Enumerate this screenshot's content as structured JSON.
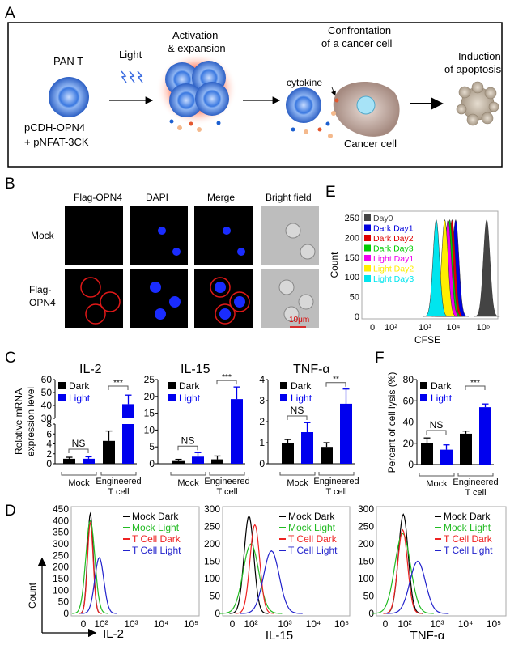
{
  "panel_labels": {
    "a": "A",
    "b": "B",
    "c": "C",
    "d": "D",
    "e": "E",
    "f": "F"
  },
  "panel_a": {
    "pan_t": "PAN T",
    "light": "Light",
    "activation_1": "Activation",
    "activation_2": "& expansion",
    "confront_1": "Confrontation",
    "confront_2": "of a cancer cell",
    "cytokine": "cytokine",
    "cancer_cell": "Cancer cell",
    "induction_1": "Induction",
    "induction_2": "of apoptosis",
    "construct_1": "pCDH-OPN4",
    "construct_2": "+ pNFAT-3CK"
  },
  "panel_b": {
    "columns": [
      "Flag-OPN4",
      "DAPI",
      "Merge",
      "Bright field"
    ],
    "rows": [
      "Mock",
      "Flag-",
      "OPN4"
    ],
    "scale_bar": "10μm"
  },
  "chart_data": [
    {
      "id": "C-IL-2",
      "type": "bar",
      "title": "IL-2",
      "ylabel_1": "Relative mRNA",
      "ylabel_2": "expression level",
      "y_broken": true,
      "ylim_lower": [
        0,
        8
      ],
      "ylim_upper": [
        30,
        60
      ],
      "yticks_lower": [
        "0",
        "2",
        "4",
        "6",
        "8"
      ],
      "yticks_upper": [
        "30",
        "40",
        "50",
        "60"
      ],
      "groups": [
        "Mock",
        "Engineered",
        "T cell"
      ],
      "series": [
        {
          "name": "Dark",
          "color": "#000000",
          "values": [
            1.0,
            4.6
          ],
          "errors": [
            0.3,
            2.0
          ]
        },
        {
          "name": "Light",
          "color": "#0000ee",
          "values": [
            1.0,
            41
          ],
          "errors": [
            0.4,
            7
          ]
        }
      ],
      "significance": [
        "NS",
        "***"
      ]
    },
    {
      "id": "C-IL-15",
      "type": "bar",
      "title": "IL-15",
      "ylim": [
        0,
        25
      ],
      "yticks": [
        "0",
        "5",
        "10",
        "15",
        "20",
        "25"
      ],
      "groups": [
        "Mock",
        "Engineered",
        "T cell"
      ],
      "series": [
        {
          "name": "Dark",
          "color": "#000000",
          "values": [
            0.8,
            1.3
          ],
          "errors": [
            0.5,
            1.0
          ]
        },
        {
          "name": "Light",
          "color": "#0000ee",
          "values": [
            2.1,
            19.2
          ],
          "errors": [
            1.2,
            3.6
          ]
        }
      ],
      "significance": [
        "NS",
        "***"
      ]
    },
    {
      "id": "C-TNF",
      "type": "bar",
      "title": "TNF-α",
      "ylim": [
        0,
        4
      ],
      "yticks": [
        "0",
        "1",
        "2",
        "3",
        "4"
      ],
      "groups": [
        "Mock",
        "Engineered",
        "T cell"
      ],
      "series": [
        {
          "name": "Dark",
          "color": "#000000",
          "values": [
            1.0,
            0.8
          ],
          "errors": [
            0.15,
            0.2
          ]
        },
        {
          "name": "Light",
          "color": "#0000ee",
          "values": [
            1.5,
            2.85
          ],
          "errors": [
            0.45,
            0.7
          ]
        }
      ],
      "significance": [
        "NS",
        "**"
      ]
    },
    {
      "id": "F",
      "type": "bar",
      "ylabel": "Percent of cell lysis (%)",
      "ylim": [
        0,
        80
      ],
      "yticks": [
        "0",
        "20",
        "40",
        "60",
        "80"
      ],
      "groups": [
        "Mock",
        "Engineered",
        "T cell"
      ],
      "series": [
        {
          "name": "Dark",
          "color": "#000000",
          "values": [
            20,
            29
          ],
          "errors": [
            5,
            2.5
          ]
        },
        {
          "name": "Light",
          "color": "#0000ee",
          "values": [
            14,
            54
          ],
          "errors": [
            4.5,
            3
          ]
        }
      ],
      "significance": [
        "NS",
        "***"
      ]
    },
    {
      "id": "E",
      "type": "area",
      "xlabel": "CFSE",
      "ylabel": "Count",
      "ylim": [
        0,
        250
      ],
      "yticks": [
        "0",
        "50",
        "100",
        "150",
        "200",
        "250"
      ],
      "xticks": [
        "0",
        "10²",
        "10³",
        "10⁴",
        "10⁵"
      ],
      "series": [
        {
          "name": "Day0",
          "color": "#444444",
          "peak_x": 130000,
          "peak_count": 245
        },
        {
          "name": "Dark Day1",
          "color": "#0000dd",
          "peak_x": 12000,
          "peak_count": 245
        },
        {
          "name": "Dark Day2",
          "color": "#dd0000",
          "peak_x": 9000,
          "peak_count": 245
        },
        {
          "name": "Dark Day3",
          "color": "#00cc00",
          "peak_x": 7500,
          "peak_count": 245
        },
        {
          "name": "Light Day1",
          "color": "#ee00ee",
          "peak_x": 6500,
          "peak_count": 245
        },
        {
          "name": "Light Day2",
          "color": "#ffee00",
          "peak_x": 5000,
          "peak_count": 245
        },
        {
          "name": "Light Day3",
          "color": "#00e5ee",
          "peak_x": 2500,
          "peak_count": 245
        }
      ]
    },
    {
      "id": "D-IL-2",
      "type": "line",
      "xlabel": "IL-2",
      "ylabel": "Count",
      "ylim": [
        0,
        450
      ],
      "yticks": [
        "0",
        "50",
        "100",
        "150",
        "200",
        "250",
        "300",
        "350",
        "400",
        "450"
      ],
      "xticks": [
        "0",
        "10²",
        "10³",
        "10⁴",
        "10⁵"
      ],
      "series": [
        {
          "name": "Mock Dark",
          "color": "#000000",
          "peak_x": 5,
          "peak_count": 430
        },
        {
          "name": "Mock Light",
          "color": "#22bb22",
          "peak_x": 5,
          "peak_count": 400
        },
        {
          "name": "T Cell Dark",
          "color": "#ee2222",
          "peak_x": 5,
          "peak_count": 390
        },
        {
          "name": "T Cell Light",
          "color": "#2222cc",
          "peak_x": 60,
          "peak_count": 240
        }
      ]
    },
    {
      "id": "D-IL-15",
      "type": "line",
      "xlabel": "IL-15",
      "ylim": [
        0,
        300
      ],
      "yticks": [
        "0",
        "50",
        "100",
        "150",
        "200",
        "250",
        "300"
      ],
      "xticks": [
        "0",
        "10²",
        "10³",
        "10⁴",
        "10⁵"
      ],
      "series": [
        {
          "name": "Mock Dark",
          "color": "#000000",
          "peak_x": 60,
          "peak_count": 280
        },
        {
          "name": "Mock Light",
          "color": "#22bb22",
          "peak_x": 100,
          "peak_count": 200
        },
        {
          "name": "T Cell Dark",
          "color": "#ee2222",
          "peak_x": 130,
          "peak_count": 255
        },
        {
          "name": "T Cell Light",
          "color": "#2222cc",
          "peak_x": 400,
          "peak_count": 180
        }
      ]
    },
    {
      "id": "D-TNF",
      "type": "line",
      "xlabel": "TNF-α",
      "ylim": [
        0,
        300
      ],
      "yticks": [
        "0",
        "50",
        "100",
        "150",
        "200",
        "250",
        "300"
      ],
      "xticks": [
        "0",
        "10²",
        "10³",
        "10⁴",
        "10⁵"
      ],
      "series": [
        {
          "name": "Mock Dark",
          "color": "#000000",
          "peak_x": 70,
          "peak_count": 285
        },
        {
          "name": "Mock Light",
          "color": "#22bb22",
          "peak_x": 60,
          "peak_count": 230
        },
        {
          "name": "T Cell Dark",
          "color": "#ee2222",
          "peak_x": 60,
          "peak_count": 240
        },
        {
          "name": "T Cell Light",
          "color": "#2222cc",
          "peak_x": 250,
          "peak_count": 150
        }
      ]
    }
  ]
}
